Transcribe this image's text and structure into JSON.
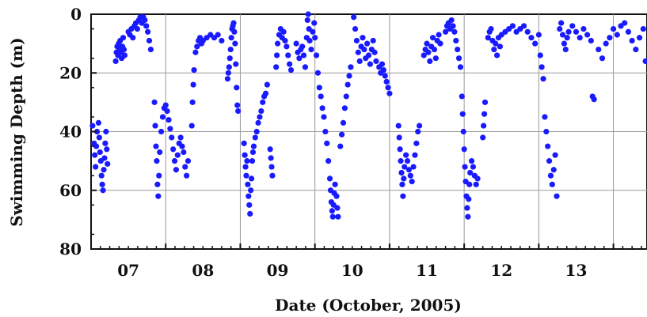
{
  "chart_data": {
    "type": "scatter",
    "title": "",
    "xlabel": "Date (October, 2005)",
    "ylabel": "Swimming Depth (m)",
    "x_tick_labels": [
      "07",
      "08",
      "09",
      "10",
      "11",
      "12",
      "13"
    ],
    "y_tick_labels": [
      "0",
      "20",
      "40",
      "60",
      "80"
    ],
    "ylim": [
      80,
      0
    ],
    "y_reversed": true,
    "xlim": [
      6.5,
      13.95
    ],
    "grid": true,
    "point_color": "#1a1aff",
    "points": [
      [
        6.52,
        38
      ],
      [
        6.54,
        44
      ],
      [
        6.55,
        48
      ],
      [
        6.56,
        52
      ],
      [
        6.57,
        45
      ],
      [
        6.58,
        40
      ],
      [
        6.6,
        37
      ],
      [
        6.61,
        42
      ],
      [
        6.62,
        47
      ],
      [
        6.63,
        50
      ],
      [
        6.64,
        55
      ],
      [
        6.65,
        58
      ],
      [
        6.66,
        60
      ],
      [
        6.67,
        53
      ],
      [
        6.68,
        49
      ],
      [
        6.69,
        44
      ],
      [
        6.7,
        40
      ],
      [
        6.71,
        46
      ],
      [
        6.72,
        51
      ],
      [
        6.83,
        16
      ],
      [
        6.84,
        13
      ],
      [
        6.85,
        11
      ],
      [
        6.86,
        14
      ],
      [
        6.87,
        10
      ],
      [
        6.88,
        12
      ],
      [
        6.89,
        9
      ],
      [
        6.9,
        13
      ],
      [
        6.91,
        15
      ],
      [
        6.92,
        11
      ],
      [
        6.93,
        8
      ],
      [
        6.94,
        12
      ],
      [
        6.95,
        14
      ],
      [
        7.0,
        6
      ],
      [
        7.02,
        7
      ],
      [
        7.04,
        5
      ],
      [
        7.06,
        8
      ],
      [
        7.08,
        4
      ],
      [
        7.1,
        3
      ],
      [
        7.12,
        5
      ],
      [
        7.14,
        2
      ],
      [
        7.16,
        1
      ],
      [
        7.18,
        3
      ],
      [
        7.2,
        1
      ],
      [
        7.22,
        2
      ],
      [
        7.24,
        4
      ],
      [
        7.26,
        6
      ],
      [
        7.28,
        9
      ],
      [
        7.3,
        12
      ],
      [
        7.35,
        30
      ],
      [
        7.36,
        38
      ],
      [
        7.37,
        45
      ],
      [
        7.38,
        50
      ],
      [
        7.39,
        58
      ],
      [
        7.4,
        62
      ],
      [
        7.41,
        55
      ],
      [
        7.42,
        47
      ],
      [
        7.44,
        40
      ],
      [
        7.46,
        35
      ],
      [
        7.48,
        32
      ],
      [
        7.5,
        31
      ],
      [
        7.52,
        33
      ],
      [
        7.54,
        36
      ],
      [
        7.56,
        39
      ],
      [
        7.58,
        42
      ],
      [
        7.6,
        46
      ],
      [
        7.62,
        50
      ],
      [
        7.64,
        53
      ],
      [
        7.66,
        48
      ],
      [
        7.68,
        44
      ],
      [
        7.7,
        42
      ],
      [
        7.72,
        45
      ],
      [
        7.74,
        47
      ],
      [
        7.76,
        52
      ],
      [
        7.78,
        55
      ],
      [
        7.8,
        50
      ],
      [
        7.85,
        38
      ],
      [
        7.86,
        30
      ],
      [
        7.87,
        24
      ],
      [
        7.88,
        19
      ],
      [
        7.9,
        13
      ],
      [
        7.92,
        11
      ],
      [
        7.94,
        9
      ],
      [
        7.96,
        8
      ],
      [
        7.98,
        10
      ],
      [
        8.0,
        9
      ],
      [
        8.05,
        8
      ],
      [
        8.1,
        7
      ],
      [
        8.15,
        8
      ],
      [
        8.2,
        7
      ],
      [
        8.25,
        9
      ],
      [
        8.33,
        22
      ],
      [
        8.34,
        20
      ],
      [
        8.35,
        18
      ],
      [
        8.36,
        15
      ],
      [
        8.37,
        12
      ],
      [
        8.38,
        8
      ],
      [
        8.39,
        5
      ],
      [
        8.4,
        4
      ],
      [
        8.41,
        3
      ],
      [
        8.42,
        6
      ],
      [
        8.43,
        10
      ],
      [
        8.44,
        17
      ],
      [
        8.45,
        25
      ],
      [
        8.46,
        31
      ],
      [
        8.47,
        33
      ],
      [
        8.55,
        44
      ],
      [
        8.56,
        48
      ],
      [
        8.57,
        52
      ],
      [
        8.58,
        55
      ],
      [
        8.59,
        50
      ],
      [
        8.6,
        58
      ],
      [
        8.61,
        62
      ],
      [
        8.62,
        65
      ],
      [
        8.63,
        68
      ],
      [
        8.64,
        60
      ],
      [
        8.65,
        56
      ],
      [
        8.66,
        50
      ],
      [
        8.67,
        47
      ],
      [
        8.68,
        45
      ],
      [
        8.7,
        42
      ],
      [
        8.72,
        40
      ],
      [
        8.74,
        37
      ],
      [
        8.76,
        35
      ],
      [
        8.78,
        33
      ],
      [
        8.8,
        30
      ],
      [
        8.82,
        28
      ],
      [
        8.84,
        27
      ],
      [
        8.86,
        24
      ],
      [
        8.9,
        46
      ],
      [
        8.91,
        49
      ],
      [
        8.92,
        52
      ],
      [
        8.93,
        55
      ],
      [
        8.98,
        18
      ],
      [
        8.99,
        14
      ],
      [
        9.0,
        10
      ],
      [
        9.02,
        7
      ],
      [
        9.04,
        5
      ],
      [
        9.06,
        8
      ],
      [
        9.08,
        6
      ],
      [
        9.1,
        9
      ],
      [
        9.12,
        11
      ],
      [
        9.14,
        14
      ],
      [
        9.16,
        17
      ],
      [
        9.18,
        19
      ],
      [
        9.25,
        10
      ],
      [
        9.27,
        13
      ],
      [
        9.29,
        15
      ],
      [
        9.31,
        12
      ],
      [
        9.33,
        11
      ],
      [
        9.35,
        14
      ],
      [
        9.37,
        18
      ],
      [
        9.39,
        8
      ],
      [
        9.4,
        2
      ],
      [
        9.41,
        0
      ],
      [
        9.42,
        5
      ],
      [
        9.43,
        9
      ],
      [
        9.45,
        12
      ],
      [
        9.47,
        6
      ],
      [
        9.49,
        3
      ],
      [
        9.5,
        8
      ],
      [
        9.52,
        14
      ],
      [
        9.54,
        20
      ],
      [
        9.56,
        25
      ],
      [
        9.58,
        28
      ],
      [
        9.6,
        32
      ],
      [
        9.62,
        35
      ],
      [
        9.64,
        40
      ],
      [
        9.66,
        44
      ],
      [
        9.68,
        50
      ],
      [
        9.7,
        56
      ],
      [
        9.71,
        60
      ],
      [
        9.72,
        64
      ],
      [
        9.73,
        67
      ],
      [
        9.74,
        69
      ],
      [
        9.75,
        65
      ],
      [
        9.76,
        61
      ],
      [
        9.77,
        58
      ],
      [
        9.79,
        62
      ],
      [
        9.8,
        66
      ],
      [
        9.81,
        69
      ],
      [
        9.84,
        45
      ],
      [
        9.86,
        41
      ],
      [
        9.88,
        37
      ],
      [
        9.9,
        32
      ],
      [
        9.92,
        28
      ],
      [
        9.94,
        24
      ],
      [
        9.96,
        21
      ],
      [
        9.98,
        18
      ],
      [
        10.02,
        1
      ],
      [
        10.04,
        5
      ],
      [
        10.06,
        9
      ],
      [
        10.08,
        13
      ],
      [
        10.1,
        16
      ],
      [
        10.12,
        11
      ],
      [
        10.14,
        8
      ],
      [
        10.16,
        12
      ],
      [
        10.18,
        15
      ],
      [
        10.2,
        10
      ],
      [
        10.22,
        14
      ],
      [
        10.24,
        17
      ],
      [
        10.26,
        12
      ],
      [
        10.28,
        9
      ],
      [
        10.3,
        13
      ],
      [
        10.32,
        16
      ],
      [
        10.36,
        18
      ],
      [
        10.38,
        20
      ],
      [
        10.4,
        17
      ],
      [
        10.42,
        19
      ],
      [
        10.44,
        21
      ],
      [
        10.46,
        23
      ],
      [
        10.48,
        25
      ],
      [
        10.5,
        27
      ],
      [
        10.62,
        38
      ],
      [
        10.63,
        42
      ],
      [
        10.64,
        46
      ],
      [
        10.65,
        50
      ],
      [
        10.66,
        54
      ],
      [
        10.67,
        58
      ],
      [
        10.68,
        62
      ],
      [
        10.69,
        56
      ],
      [
        10.7,
        52
      ],
      [
        10.72,
        48
      ],
      [
        10.74,
        50
      ],
      [
        10.76,
        53
      ],
      [
        10.78,
        55
      ],
      [
        10.8,
        57
      ],
      [
        10.82,
        52
      ],
      [
        10.84,
        48
      ],
      [
        10.86,
        44
      ],
      [
        10.88,
        40
      ],
      [
        10.9,
        38
      ],
      [
        10.96,
        14
      ],
      [
        10.98,
        12
      ],
      [
        11.0,
        10
      ],
      [
        11.02,
        13
      ],
      [
        11.04,
        16
      ],
      [
        11.06,
        11
      ],
      [
        11.08,
        8
      ],
      [
        11.1,
        12
      ],
      [
        11.12,
        15
      ],
      [
        11.14,
        9
      ],
      [
        11.16,
        7
      ],
      [
        11.18,
        10
      ],
      [
        11.25,
        6
      ],
      [
        11.27,
        4
      ],
      [
        11.29,
        3
      ],
      [
        11.31,
        5
      ],
      [
        11.33,
        2
      ],
      [
        11.35,
        4
      ],
      [
        11.37,
        6
      ],
      [
        11.39,
        9
      ],
      [
        11.41,
        12
      ],
      [
        11.43,
        15
      ],
      [
        11.45,
        18
      ],
      [
        11.47,
        28
      ],
      [
        11.48,
        34
      ],
      [
        11.49,
        40
      ],
      [
        11.5,
        46
      ],
      [
        11.51,
        52
      ],
      [
        11.52,
        57
      ],
      [
        11.53,
        62
      ],
      [
        11.54,
        66
      ],
      [
        11.55,
        69
      ],
      [
        11.56,
        63
      ],
      [
        11.57,
        58
      ],
      [
        11.58,
        54
      ],
      [
        11.6,
        50
      ],
      [
        11.62,
        52
      ],
      [
        11.64,
        55
      ],
      [
        11.66,
        58
      ],
      [
        11.68,
        56
      ],
      [
        11.75,
        42
      ],
      [
        11.76,
        38
      ],
      [
        11.77,
        34
      ],
      [
        11.78,
        30
      ],
      [
        11.82,
        8
      ],
      [
        11.84,
        6
      ],
      [
        11.86,
        5
      ],
      [
        11.88,
        9
      ],
      [
        11.9,
        12
      ],
      [
        11.92,
        10
      ],
      [
        11.94,
        14
      ],
      [
        11.96,
        8
      ],
      [
        11.98,
        11
      ],
      [
        12.0,
        7
      ],
      [
        12.05,
        6
      ],
      [
        12.1,
        5
      ],
      [
        12.15,
        4
      ],
      [
        12.2,
        6
      ],
      [
        12.25,
        5
      ],
      [
        12.3,
        4
      ],
      [
        12.35,
        6
      ],
      [
        12.4,
        8
      ],
      [
        12.45,
        10
      ],
      [
        12.5,
        7
      ],
      [
        12.52,
        14
      ],
      [
        12.54,
        18
      ],
      [
        12.56,
        22
      ],
      [
        12.58,
        35
      ],
      [
        12.6,
        40
      ],
      [
        12.62,
        45
      ],
      [
        12.64,
        50
      ],
      [
        12.66,
        55
      ],
      [
        12.68,
        58
      ],
      [
        12.7,
        53
      ],
      [
        12.72,
        48
      ],
      [
        12.74,
        62
      ],
      [
        12.78,
        5
      ],
      [
        12.8,
        3
      ],
      [
        12.82,
        7
      ],
      [
        12.84,
        10
      ],
      [
        12.86,
        12
      ],
      [
        12.88,
        8
      ],
      [
        12.9,
        6
      ],
      [
        12.95,
        4
      ],
      [
        13.0,
        6
      ],
      [
        13.05,
        8
      ],
      [
        13.1,
        5
      ],
      [
        13.15,
        7
      ],
      [
        13.2,
        9
      ],
      [
        13.22,
        28
      ],
      [
        13.24,
        29
      ],
      [
        13.3,
        12
      ],
      [
        13.35,
        15
      ],
      [
        13.4,
        10
      ],
      [
        13.45,
        8
      ],
      [
        13.5,
        5
      ],
      [
        13.55,
        7
      ],
      [
        13.6,
        4
      ],
      [
        13.65,
        3
      ],
      [
        13.7,
        6
      ],
      [
        13.75,
        9
      ],
      [
        13.8,
        12
      ],
      [
        13.85,
        8
      ],
      [
        13.9,
        5
      ],
      [
        13.93,
        16
      ]
    ]
  }
}
